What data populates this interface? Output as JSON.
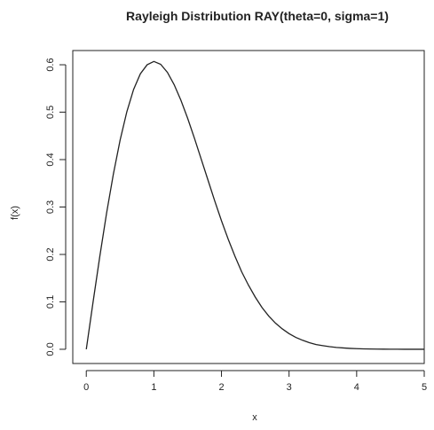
{
  "chart_data": {
    "type": "line",
    "title": "Rayleigh Distribution RAY(theta=0, sigma=1)",
    "xlabel": "x",
    "ylabel": "f(x)",
    "xlim": [
      -0.2,
      5.0
    ],
    "ylim": [
      -0.03,
      0.63
    ],
    "x_ticks": [
      "0",
      "1",
      "2",
      "3",
      "4",
      "5"
    ],
    "y_ticks": [
      "0.0",
      "0.1",
      "0.2",
      "0.3",
      "0.4",
      "0.5",
      "0.6"
    ],
    "grid": false,
    "legend": "none",
    "series": [
      {
        "x": [
          0.0,
          0.1,
          0.2,
          0.3,
          0.4,
          0.5,
          0.6,
          0.7,
          0.8,
          0.9,
          1.0,
          1.1,
          1.2,
          1.3,
          1.4,
          1.5,
          1.6,
          1.7,
          1.8,
          1.9,
          2.0,
          2.1,
          2.2,
          2.3,
          2.4,
          2.5,
          2.6,
          2.7,
          2.8,
          2.9,
          3.0,
          3.1,
          3.2,
          3.3,
          3.4,
          3.5,
          3.6,
          3.7,
          3.8,
          3.9,
          4.0,
          4.1,
          4.2,
          4.3,
          4.4,
          4.5,
          4.6,
          4.7,
          4.8,
          4.9,
          5.0
        ],
        "values": [
          0.0,
          0.0995,
          0.196,
          0.287,
          0.369,
          0.441,
          0.501,
          0.548,
          0.581,
          0.6,
          0.607,
          0.601,
          0.584,
          0.558,
          0.525,
          0.487,
          0.445,
          0.401,
          0.357,
          0.313,
          0.271,
          0.232,
          0.196,
          0.163,
          0.135,
          0.11,
          0.088,
          0.07,
          0.055,
          0.043,
          0.033,
          0.025,
          0.019,
          0.014,
          0.01,
          0.0076,
          0.0055,
          0.0039,
          0.0028,
          0.0019,
          0.0013,
          0.0009,
          0.0006,
          0.0004,
          0.0003,
          0.0002,
          0.0001,
          0.0,
          0.0,
          0.0,
          0.0
        ]
      }
    ],
    "color": "#222222"
  }
}
